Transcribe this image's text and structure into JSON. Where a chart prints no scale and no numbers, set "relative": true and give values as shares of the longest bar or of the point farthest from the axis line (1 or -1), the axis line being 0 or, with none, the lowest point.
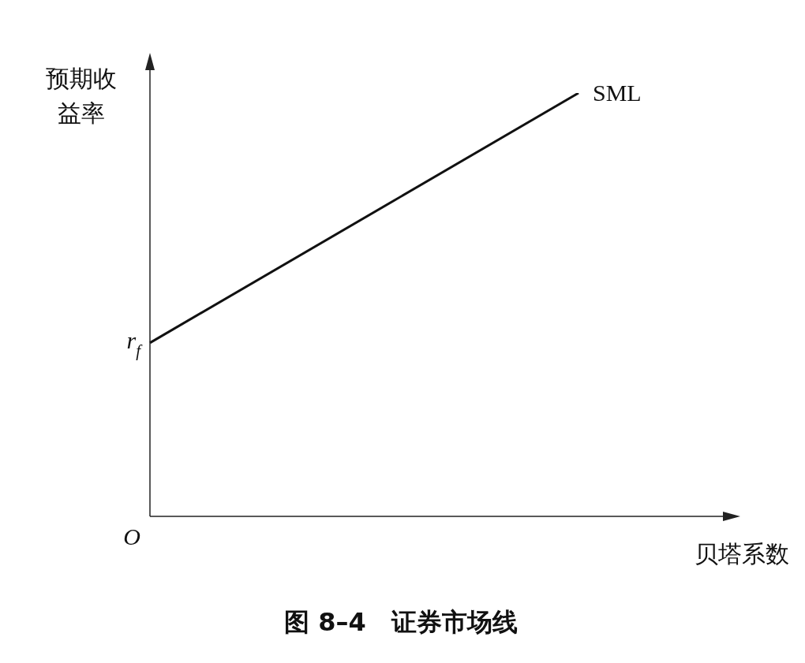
{
  "chart_data": {
    "type": "line",
    "title": "图 8–4　证券市场线",
    "xlabel": "贝塔系数",
    "ylabel": "预期收益率",
    "relative": true,
    "categories": [
      null,
      null
    ],
    "series": [
      {
        "name": "SML",
        "color": "#111111",
        "values": [
          0.41,
          1
        ]
      }
    ],
    "annotations": [
      "r$_{f}$",
      "O"
    ],
    "marker": "none",
    "grid": false,
    "legend": false
  }
}
